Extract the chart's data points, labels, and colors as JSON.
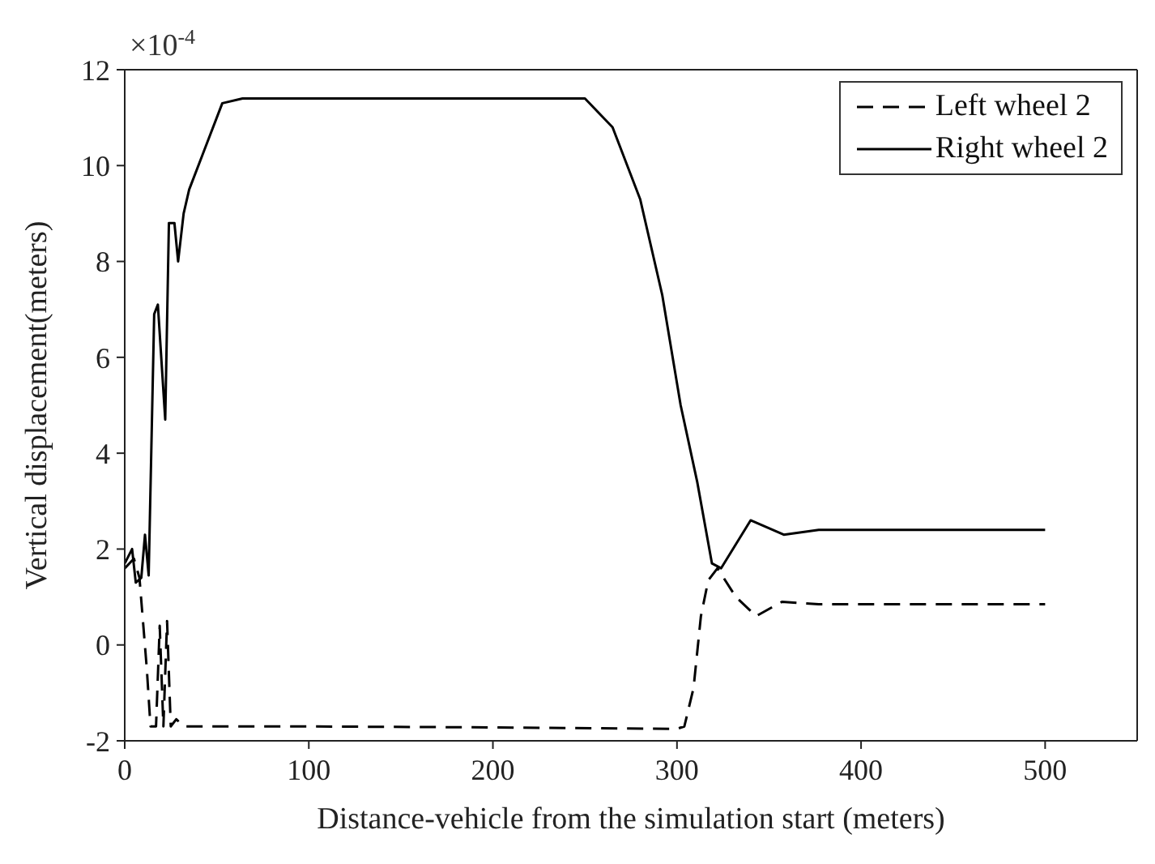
{
  "chart_data": {
    "type": "line",
    "xlabel": "Distance-vehicle from the simulation start (meters)",
    "ylabel": "Vertical displacement(meters)",
    "annotations": [
      "×10$^{-4}$"
    ],
    "xlim": [
      0,
      550
    ],
    "xticks": [
      0,
      100,
      200,
      300,
      400,
      500
    ],
    "ylim": [
      -2,
      12
    ],
    "yticks": [
      -2,
      0,
      2,
      4,
      6,
      8,
      10,
      12
    ],
    "grid": false,
    "legend": "top right",
    "marker": "none",
    "series": [
      {
        "name": "Left wheel 2",
        "color": "#000000",
        "line_style": "dashed",
        "x": [
          0,
          5,
          8,
          12,
          14,
          17,
          19,
          21,
          23,
          25,
          28,
          32,
          100,
          200,
          300,
          304,
          309,
          313,
          317,
          322,
          332,
          343,
          357,
          377,
          500
        ],
        "values": [
          1.6,
          1.8,
          1.4,
          -0.5,
          -1.7,
          -1.7,
          0.4,
          -1.7,
          0.5,
          -1.7,
          -1.55,
          -1.7,
          -1.7,
          -1.72,
          -1.75,
          -1.7,
          -0.9,
          0.6,
          1.35,
          1.6,
          1.0,
          0.6,
          0.9,
          0.85,
          0.85
        ]
      },
      {
        "name": "Right wheel 2",
        "color": "#000000",
        "line_style": "solid",
        "x": [
          0,
          4,
          6,
          9,
          11,
          13,
          16,
          18,
          22,
          24,
          27,
          29,
          32,
          35,
          42,
          53,
          64,
          250,
          265,
          280,
          292,
          302,
          311,
          319,
          324,
          340,
          358,
          377,
          500
        ],
        "values": [
          1.7,
          2.0,
          1.3,
          1.4,
          2.3,
          1.45,
          6.9,
          7.1,
          4.7,
          8.8,
          8.8,
          8.0,
          9.0,
          9.5,
          10.2,
          11.3,
          11.4,
          11.4,
          10.8,
          9.3,
          7.3,
          5.0,
          3.4,
          1.7,
          1.6,
          2.6,
          2.3,
          2.4,
          2.4
        ]
      }
    ]
  }
}
